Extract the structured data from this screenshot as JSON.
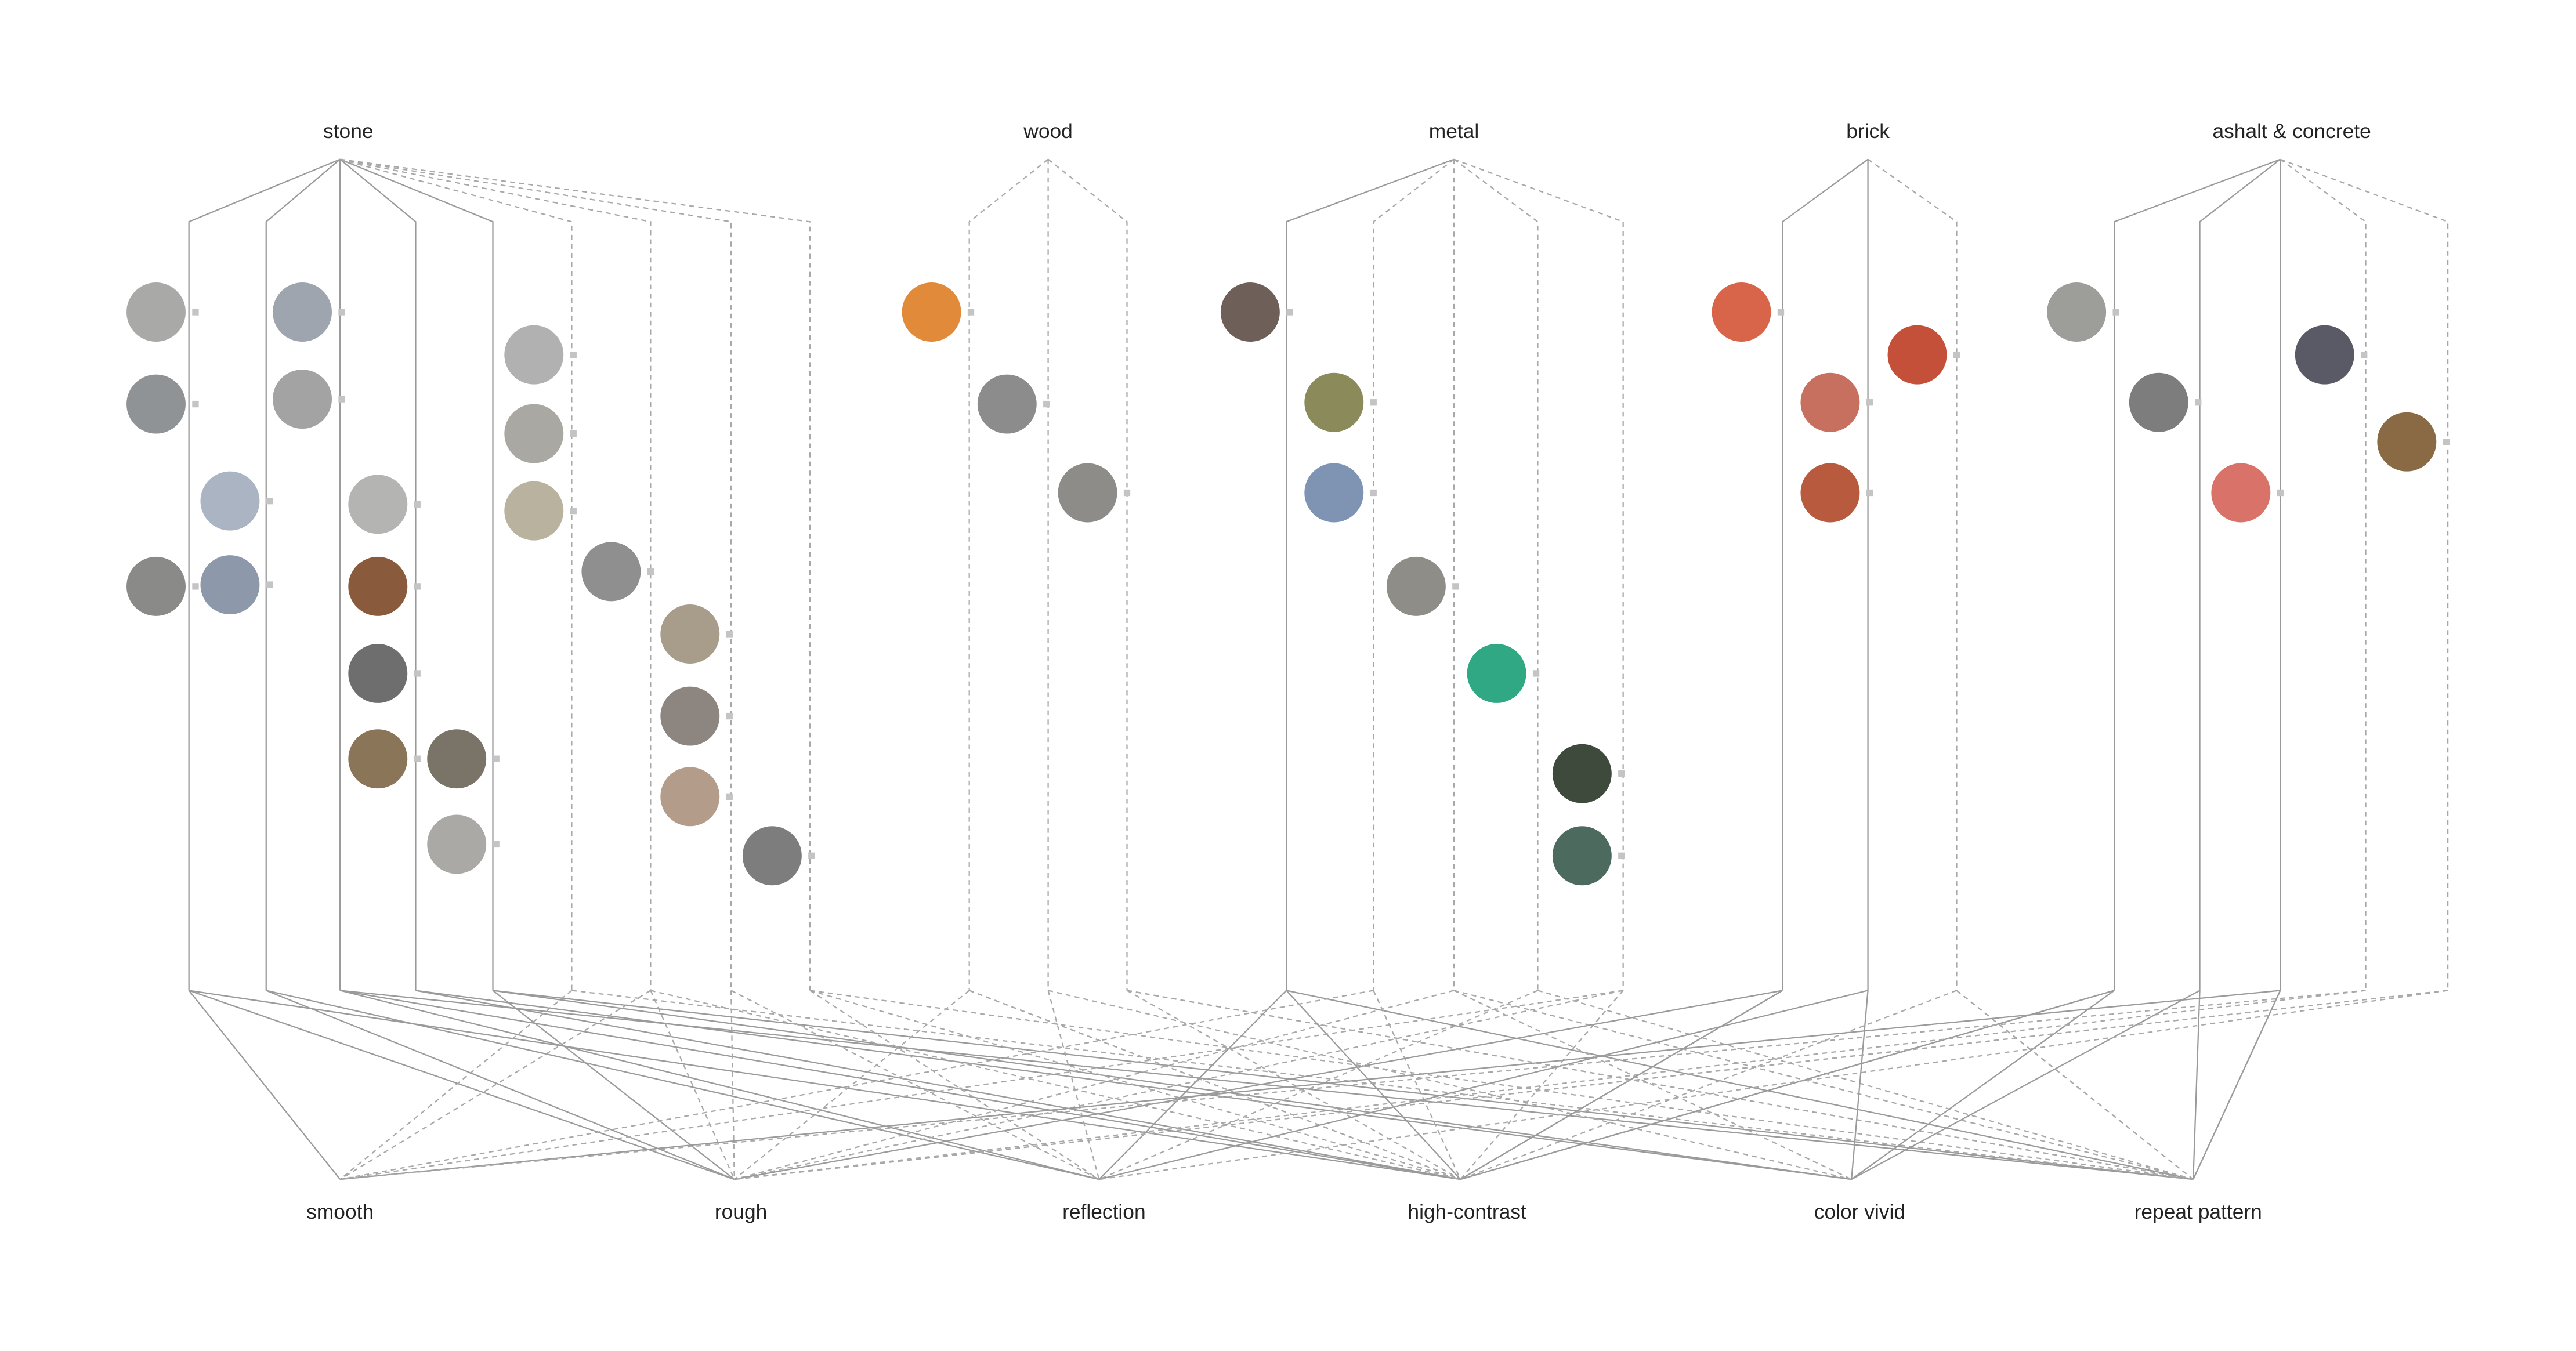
{
  "materials": [
    "stone",
    "wood",
    "metal",
    "brick",
    "ashalt & concrete"
  ],
  "properties": [
    "smooth",
    "rough",
    "reflection",
    "high-contrast",
    "color vivid",
    "repeat pattern"
  ]
}
